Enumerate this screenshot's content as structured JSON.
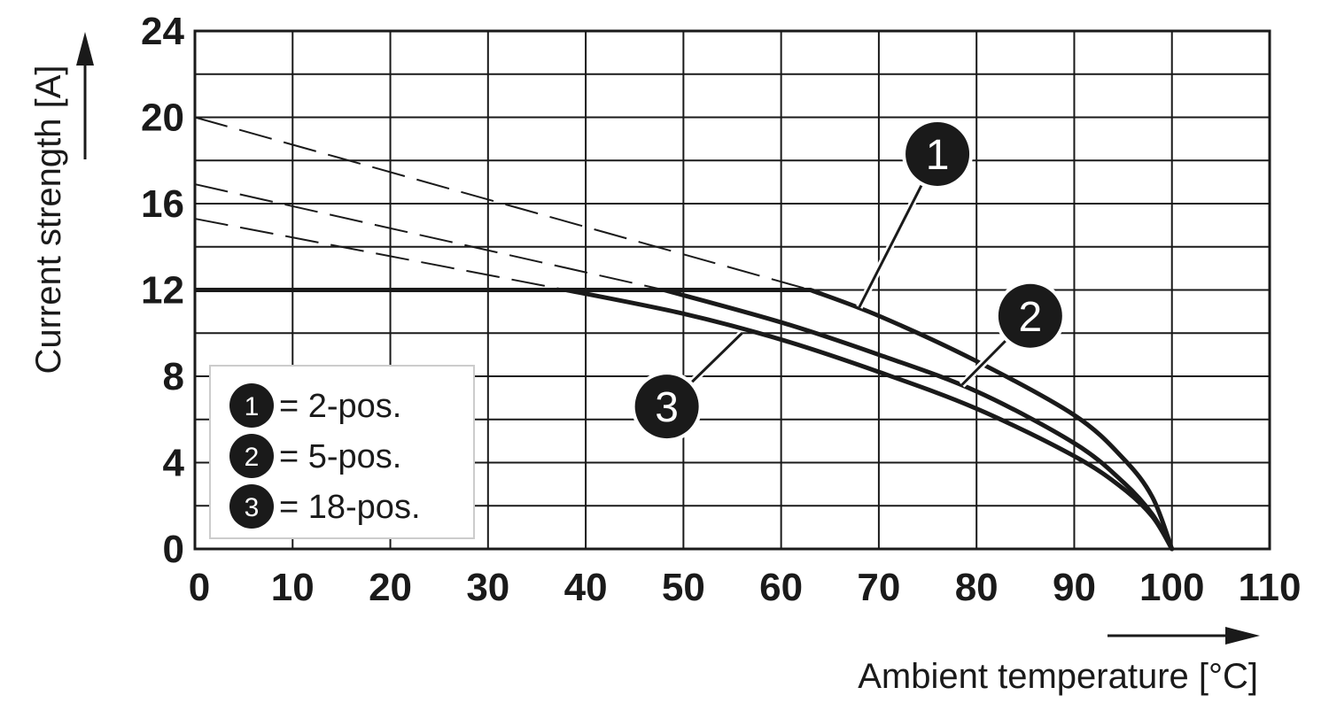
{
  "chart_data": {
    "type": "line",
    "xlabel": "Ambient temperature [°C]",
    "ylabel": "Current strength [A]",
    "xlim": [
      0,
      110
    ],
    "ylim": [
      0,
      24
    ],
    "x_ticks": [
      0,
      10,
      20,
      30,
      40,
      50,
      60,
      70,
      80,
      90,
      100,
      110
    ],
    "y_ticks": [
      0,
      4,
      8,
      12,
      16,
      20,
      24
    ],
    "x_minor_gridlines": false,
    "y_minor_step": 2,
    "grid": true,
    "legend_position": "bottom-left",
    "series": [
      {
        "name": "1",
        "legend_label": "= 2-pos.",
        "solid": [
          [
            0,
            12
          ],
          [
            63,
            12
          ],
          [
            70,
            10.8
          ],
          [
            80,
            8.7
          ],
          [
            90,
            6.2
          ],
          [
            95,
            4.2
          ],
          [
            98,
            2.4
          ],
          [
            100,
            0
          ]
        ],
        "dashed": [
          [
            0,
            20
          ],
          [
            63,
            12
          ]
        ]
      },
      {
        "name": "2",
        "legend_label": "= 5-pos.",
        "solid": [
          [
            0,
            12
          ],
          [
            48,
            12
          ],
          [
            60,
            10.5
          ],
          [
            70,
            9.0
          ],
          [
            80,
            7.3
          ],
          [
            90,
            4.9
          ],
          [
            95,
            3.1
          ],
          [
            98,
            1.6
          ],
          [
            100,
            0
          ]
        ],
        "dashed": [
          [
            0,
            16.9
          ],
          [
            48,
            12
          ]
        ]
      },
      {
        "name": "3",
        "legend_label": "= 18-pos.",
        "solid": [
          [
            0,
            12
          ],
          [
            38,
            12
          ],
          [
            50,
            10.9
          ],
          [
            60,
            9.7
          ],
          [
            70,
            8.2
          ],
          [
            80,
            6.5
          ],
          [
            90,
            4.3
          ],
          [
            95,
            2.8
          ],
          [
            98,
            1.5
          ],
          [
            100,
            0
          ]
        ],
        "dashed": [
          [
            0,
            15.3
          ],
          [
            38,
            12
          ]
        ]
      }
    ]
  }
}
